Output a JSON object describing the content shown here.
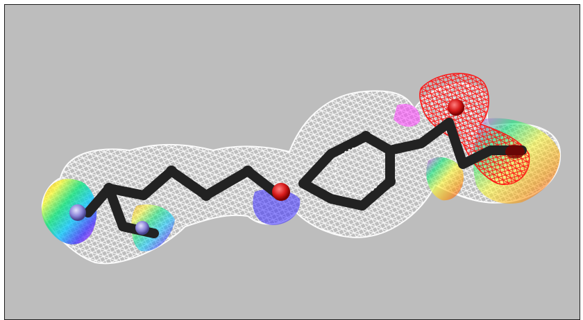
{
  "viewer": {
    "background_color": "#bdbdbd",
    "frame_color": "#1a1a1a",
    "render_style": "wireframe molecular surface over ball-and-stick model",
    "surface_colors": {
      "neutral": "#ffffff",
      "negative": "#ff1a1a",
      "positive": "#3a2cff",
      "transition": [
        "#00e676",
        "#00c8ff",
        "#ff40ff",
        "#ffff33",
        "#ff9900"
      ]
    },
    "atom_colors": {
      "carbon": "#222222",
      "oxygen": "#d61a1a",
      "nitrogen": "#8c86d9"
    },
    "icons": [
      "molecule-surface-icon"
    ]
  }
}
